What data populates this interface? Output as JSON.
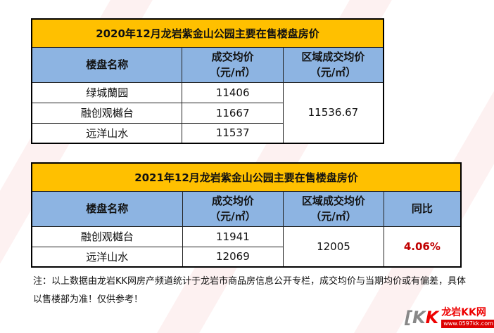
{
  "table1": {
    "title": "2020年12月龙岩紫金山公园主要在售楼盘房价",
    "headers": [
      "楼盘名称",
      "成交均价",
      "（元/㎡）",
      "区域成交均价",
      "（元/㎡）"
    ],
    "rows": [
      {
        "name": "绿城蘭园",
        "price": "11406"
      },
      {
        "name": "融创观樾台",
        "price": "11667"
      },
      {
        "name": "远洋山水",
        "price": "11537"
      }
    ],
    "region_avg": "11536.67"
  },
  "table2": {
    "title": "2021年12月龙岩紫金山公园主要在售楼盘房价",
    "headers": [
      "楼盘名称",
      "成交均价",
      "（元/㎡）",
      "区域成交均价",
      "（元/㎡）",
      "同比"
    ],
    "rows": [
      {
        "name": "融创观樾台",
        "price": "11941"
      },
      {
        "name": "远洋山水",
        "price": "12069"
      }
    ],
    "region_avg": "12005",
    "yoy": "4.06%"
  },
  "note": "注：以上数据由龙岩KK网房产频道统计于龙岩市商品房信息公开专栏，成交均价与当期均价或有偏差，具体以售楼部为准！仅供参考！",
  "logo": {
    "mark": "KK",
    "name": "龙岩KK网",
    "url": "www.0597kk.com"
  },
  "colors": {
    "title_bg": "#ffc000",
    "header_bg": "#8db4e2",
    "yoy": "#c00000"
  }
}
